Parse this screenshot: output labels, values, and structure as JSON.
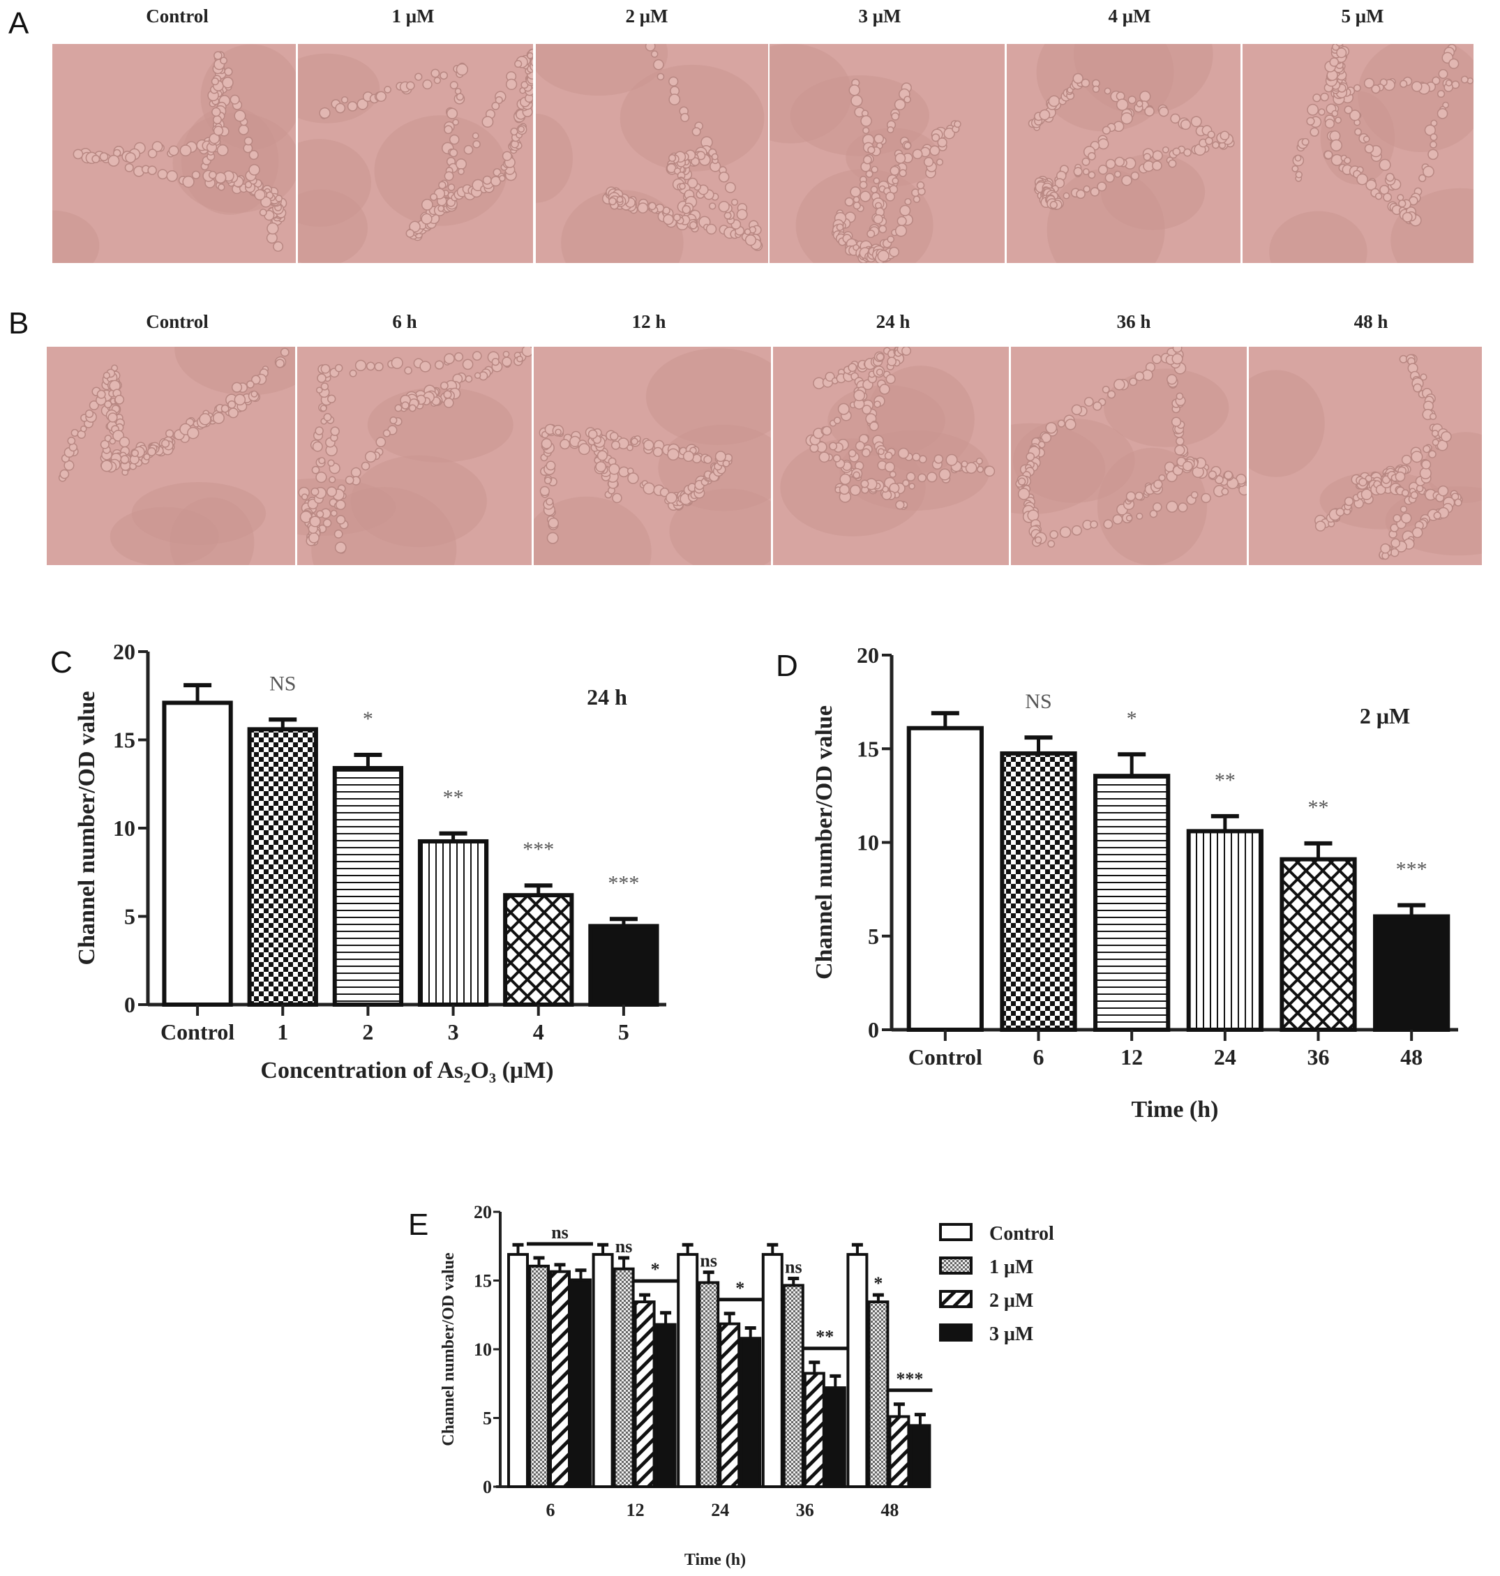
{
  "panel_a": {
    "letter": "A",
    "labels": [
      "Control",
      "1 μM",
      "2 μM",
      "3 μM",
      "4 μM",
      "5 μM"
    ]
  },
  "panel_b": {
    "letter": "B",
    "labels": [
      "Control",
      "6 h",
      "12 h",
      "24 h",
      "36 h",
      "48 h"
    ]
  },
  "colors": {
    "micrograph_bg": "#d7a5a1",
    "micrograph_cell": "#b88782",
    "bar_stroke": "#111111"
  },
  "chart_data": [
    {
      "id": "C",
      "letter": "C",
      "type": "bar",
      "categories": [
        "Control",
        "1",
        "2",
        "3",
        "4",
        "5"
      ],
      "values": [
        17.1,
        15.6,
        13.4,
        9.25,
        6.2,
        4.45
      ],
      "errors": [
        1.0,
        0.55,
        0.75,
        0.45,
        0.55,
        0.4
      ],
      "annotations": [
        "",
        "NS",
        "*",
        "**",
        "***",
        "***"
      ],
      "fills": [
        "white",
        "checker",
        "hlines",
        "vlines",
        "crosshatch",
        "solid"
      ],
      "condition_label": "24 h",
      "xlabel": "Concentration of As₂O₃ (μM)",
      "ylabel": "Channel number/OD value",
      "ylim": [
        0,
        20
      ],
      "yticks": [
        0,
        5,
        10,
        15,
        20
      ]
    },
    {
      "id": "D",
      "letter": "D",
      "type": "bar",
      "categories": [
        "Control",
        "6",
        "12",
        "24",
        "36",
        "48"
      ],
      "values": [
        16.1,
        14.75,
        13.55,
        10.6,
        9.1,
        6.05
      ],
      "errors": [
        0.8,
        0.85,
        1.15,
        0.8,
        0.85,
        0.6
      ],
      "annotations": [
        "",
        "NS",
        "*",
        "**",
        "**",
        "***"
      ],
      "fills": [
        "white",
        "checker",
        "hlines",
        "vlines",
        "crosshatch",
        "solid"
      ],
      "condition_label": "2 μM",
      "xlabel": "Time (h)",
      "ylabel": "Channel number/OD value",
      "ylim": [
        0,
        20
      ],
      "yticks": [
        0,
        5,
        10,
        15,
        20
      ]
    },
    {
      "id": "E",
      "letter": "E",
      "type": "bar",
      "categories": [
        "6",
        "12",
        "24",
        "36",
        "48"
      ],
      "series": [
        {
          "name": "Control",
          "fill": "white",
          "values": [
            16.9,
            16.9,
            16.9,
            16.9,
            16.9
          ],
          "errors": [
            0.7,
            0.7,
            0.7,
            0.7,
            0.7
          ]
        },
        {
          "name": "1 μM",
          "fill": "dots",
          "values": [
            16.05,
            15.85,
            14.85,
            14.65,
            13.45
          ],
          "errors": [
            0.6,
            0.8,
            0.75,
            0.5,
            0.5
          ]
        },
        {
          "name": "2 μM",
          "fill": "diag",
          "values": [
            15.65,
            13.45,
            11.85,
            8.25,
            5.1
          ],
          "errors": [
            0.5,
            0.5,
            0.75,
            0.8,
            0.9
          ]
        },
        {
          "name": "3 μM",
          "fill": "solid",
          "values": [
            15.05,
            11.8,
            10.8,
            7.2,
            4.45
          ],
          "errors": [
            0.7,
            0.85,
            0.75,
            0.85,
            0.8
          ]
        }
      ],
      "significance": [
        {
          "group": "6",
          "label": "ns",
          "from_series": 1,
          "to_series": 3,
          "bracket": true
        },
        {
          "group": "12",
          "label": "ns",
          "from_series": 1,
          "to_series": 1,
          "bracket": false
        },
        {
          "group": "12",
          "label": "*",
          "from_series": 2,
          "to_series": 3,
          "bracket": true
        },
        {
          "group": "24",
          "label": "ns",
          "from_series": 1,
          "to_series": 1,
          "bracket": false
        },
        {
          "group": "24",
          "label": "*",
          "from_series": 2,
          "to_series": 3,
          "bracket": true
        },
        {
          "group": "36",
          "label": "ns",
          "from_series": 1,
          "to_series": 1,
          "bracket": false
        },
        {
          "group": "36",
          "label": "**",
          "from_series": 2,
          "to_series": 3,
          "bracket": true
        },
        {
          "group": "48",
          "label": "*",
          "from_series": 1,
          "to_series": 1,
          "bracket": false
        },
        {
          "group": "48",
          "label": "***",
          "from_series": 2,
          "to_series": 3,
          "bracket": true
        }
      ],
      "xlabel": "Time (h)",
      "ylabel": "Channel number/OD value",
      "ylim": [
        0,
        20
      ],
      "yticks": [
        0,
        5,
        10,
        15,
        20
      ],
      "legend_position": "right"
    }
  ]
}
